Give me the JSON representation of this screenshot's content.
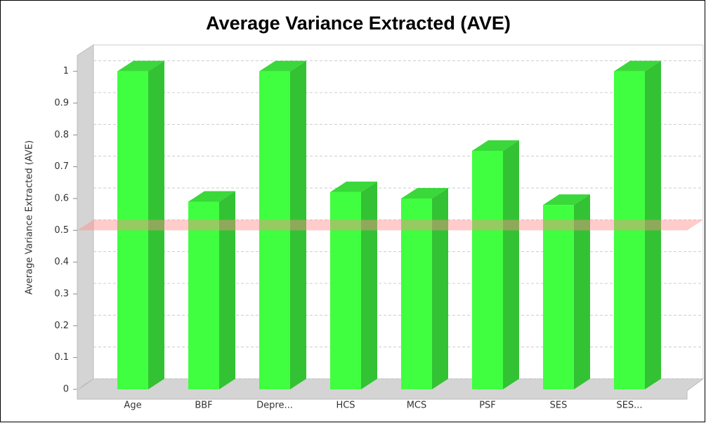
{
  "chart_data": {
    "type": "bar3d",
    "title": "Average Variance Extracted (AVE)",
    "y_label": "Average Variance Extracted (AVE)",
    "categories": [
      "Age",
      "BBF",
      "Depre...",
      "HCS",
      "MCS",
      "PSF",
      "SES",
      "SES..."
    ],
    "values": [
      1.0,
      0.59,
      1.0,
      0.62,
      0.6,
      0.75,
      0.58,
      1.0
    ],
    "color": "#40ff40",
    "threshold": 0.5,
    "ylim": [
      0,
      1.05
    ],
    "yticks": [
      0,
      0.1,
      0.2,
      0.3,
      0.4,
      0.5,
      0.6,
      0.7,
      0.8,
      0.9,
      1
    ],
    "grid": true
  }
}
